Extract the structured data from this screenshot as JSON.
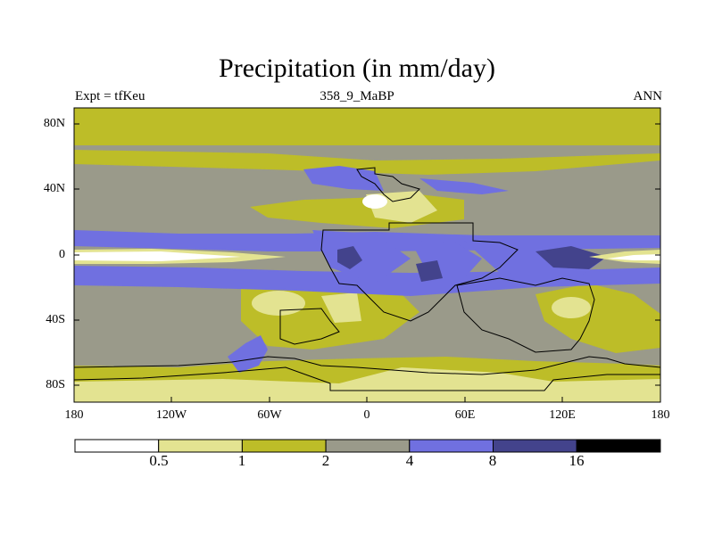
{
  "title": "Precipitation (in mm/day)",
  "subtitle_left": "Expt = tfKeu",
  "subtitle_center": "358_9_MaBP",
  "subtitle_right": "ANN",
  "y_ticks": [
    "80N",
    "40N",
    "0",
    "40S",
    "80S"
  ],
  "x_ticks": [
    "180",
    "120W",
    "60W",
    "0",
    "60E",
    "120E",
    "180"
  ],
  "colorbar": {
    "labels": [
      "0.5",
      "1",
      "2",
      "4",
      "8",
      "16"
    ],
    "colors": [
      "#ffffff",
      "#e3e391",
      "#bdbd28",
      "#9a9a8a",
      "#7070e0",
      "#43438c",
      "#000000"
    ]
  },
  "map_data": {
    "variable": "Precipitation",
    "units": "mm/day",
    "lon_range": [
      -180,
      180
    ],
    "lat_range": [
      -90,
      90
    ],
    "levels": [
      0.5,
      1,
      2,
      4,
      8,
      16
    ]
  }
}
